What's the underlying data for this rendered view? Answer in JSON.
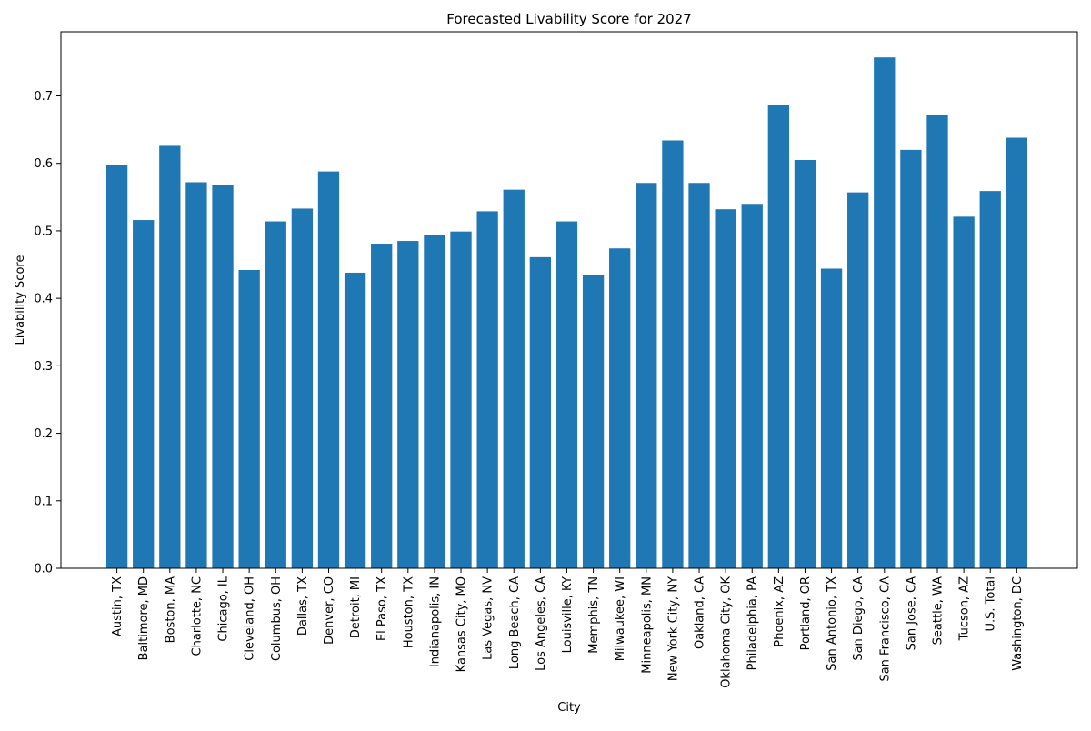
{
  "chart_data": {
    "type": "bar",
    "title": "Forecasted Livability Score for 2027",
    "xlabel": "City",
    "ylabel": "Livability Score",
    "ylim": [
      0,
      0.795
    ],
    "yticks": [
      "0.0",
      "0.1",
      "0.2",
      "0.3",
      "0.4",
      "0.5",
      "0.6",
      "0.7"
    ],
    "grid": false,
    "bar_color": "#1f77b4",
    "categories": [
      "Austin, TX",
      "Baltimore, MD",
      "Boston, MA",
      "Charlotte, NC",
      "Chicago, IL",
      "Cleveland, OH",
      "Columbus, OH",
      "Dallas, TX",
      "Denver, CO",
      "Detroit, MI",
      "El Paso, TX",
      "Houston, TX",
      "Indianapolis, IN",
      "Kansas City, MO",
      "Las Vegas, NV",
      "Long Beach, CA",
      "Los Angeles, CA",
      "Louisville, KY",
      "Memphis, TN",
      "Milwaukee, WI",
      "Minneapolis, MN",
      "New York City, NY",
      "Oakland, CA",
      "Oklahoma City, OK",
      "Philadelphia, PA",
      "Phoenix, AZ",
      "Portland, OR",
      "San Antonio, TX",
      "San Diego, CA",
      "San Francisco, CA",
      "San Jose, CA",
      "Seattle, WA",
      "Tucson, AZ",
      "U.S. Total",
      "Washington, DC"
    ],
    "values": [
      0.598,
      0.516,
      0.626,
      0.572,
      0.568,
      0.442,
      0.514,
      0.533,
      0.588,
      0.438,
      0.481,
      0.485,
      0.494,
      0.499,
      0.529,
      0.561,
      0.461,
      0.514,
      0.434,
      0.474,
      0.571,
      0.634,
      0.571,
      0.532,
      0.54,
      0.687,
      0.605,
      0.444,
      0.557,
      0.757,
      0.62,
      0.672,
      0.521,
      0.559,
      0.638
    ]
  }
}
